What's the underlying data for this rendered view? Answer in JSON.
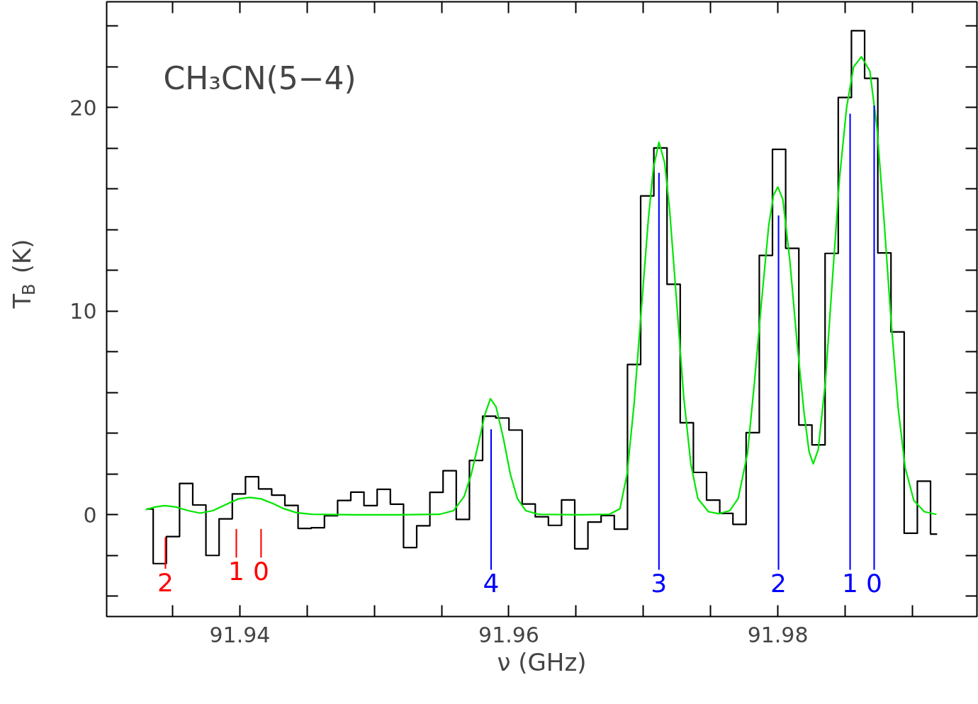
{
  "chart_data": {
    "type": "step",
    "title": "CH₃CN(5−4)",
    "xlabel": "ν (GHz)",
    "ylabel": "T$_{B}$ (K)",
    "xlim": [
      91.9301,
      91.9948
    ],
    "ylim": [
      -5,
      25.2
    ],
    "xticks": [
      {
        "value": 91.935,
        "label": null
      },
      91.94,
      {
        "value": 91.945,
        "label": null
      },
      {
        "value": 91.95,
        "label": null
      },
      {
        "value": 91.955,
        "label": null
      },
      91.96,
      {
        "value": 91.965,
        "label": null
      },
      {
        "value": 91.97,
        "label": null
      },
      {
        "value": 91.975,
        "label": null
      },
      91.98,
      {
        "value": 91.985,
        "label": null
      },
      {
        "value": 91.99,
        "label": null
      }
    ],
    "yticks": [
      {
        "value": -4,
        "label": null
      },
      {
        "value": -2,
        "label": null
      },
      0,
      {
        "value": 2,
        "label": null
      },
      {
        "value": 4,
        "label": null
      },
      {
        "value": 6,
        "label": null
      },
      {
        "value": 8,
        "label": null
      },
      10,
      {
        "value": 12,
        "label": null
      },
      {
        "value": 14,
        "label": null
      },
      {
        "value": 16,
        "label": null
      },
      {
        "value": 18,
        "label": null
      },
      20,
      {
        "value": 22,
        "label": null
      },
      {
        "value": 24,
        "label": null
      }
    ],
    "grid": false,
    "series": [
      {
        "color": "#000000",
        "x": [
          91.93307,
          91.93405,
          91.93503,
          91.93601,
          91.93699,
          91.93797,
          91.93895,
          91.93993,
          91.94091,
          91.94188,
          91.94286,
          91.94384,
          91.94482,
          91.9458,
          91.94678,
          91.94776,
          91.94874,
          91.94972,
          91.9507,
          91.95168,
          91.95266,
          91.95364,
          91.95462,
          91.9556,
          91.95658,
          91.95756,
          91.95854,
          91.95952,
          91.9605,
          91.96148,
          91.96245,
          91.96343,
          91.96441,
          91.96539,
          91.96637,
          91.96735,
          91.96833,
          91.96931,
          91.97029,
          91.97127,
          91.97225,
          91.97323,
          91.97421,
          91.97519,
          91.97617,
          91.97715,
          91.97813,
          91.97911,
          91.98009,
          91.98107,
          91.98205,
          91.98302,
          91.984,
          91.98498,
          91.98596,
          91.98694,
          91.98792,
          91.9889,
          91.98988,
          91.99086,
          91.99184
        ],
        "values": [
          0.28,
          -2.4,
          -1.07,
          1.54,
          0.48,
          -2.0,
          -0.2,
          1.02,
          1.87,
          1.27,
          0.96,
          0.46,
          -0.67,
          -0.64,
          -0.05,
          0.7,
          1.11,
          0.45,
          1.25,
          0.52,
          -1.61,
          -0.54,
          1.1,
          2.16,
          -0.23,
          2.67,
          4.84,
          4.75,
          4.16,
          0.53,
          -0.1,
          -0.52,
          0.73,
          -1.67,
          -0.36,
          -0.04,
          -0.71,
          7.38,
          15.66,
          18.02,
          11.32,
          4.52,
          2.08,
          0.72,
          0.07,
          -0.47,
          4.03,
          12.74,
          17.95,
          13.09,
          4.41,
          3.43,
          12.84,
          20.5,
          23.78,
          21.44,
          12.86,
          8.98,
          -0.91,
          1.65,
          -0.95
        ]
      },
      {
        "type": "line",
        "color": "#00e600",
        "x": [
          91.933,
          91.93368,
          91.93442,
          91.93526,
          91.93616,
          91.93705,
          91.938,
          91.93895,
          91.93989,
          91.94074,
          91.94158,
          91.94247,
          91.94326,
          91.94421,
          91.94537,
          91.94853,
          91.95168,
          91.95484,
          91.95589,
          91.95668,
          91.95721,
          91.95774,
          91.95821,
          91.95863,
          91.95905,
          91.95958,
          91.96011,
          91.96063,
          91.96126,
          91.96221,
          91.96537,
          91.96747,
          91.96826,
          91.96879,
          91.96932,
          91.96984,
          91.97037,
          91.97074,
          91.97116,
          91.97158,
          91.97195,
          91.97247,
          91.973,
          91.97353,
          91.97405,
          91.97484,
          91.97563,
          91.97642,
          91.97705,
          91.97774,
          91.97826,
          91.97879,
          91.97932,
          91.97968,
          91.98,
          91.98037,
          91.98089,
          91.98142,
          91.98195,
          91.98232,
          91.98263,
          91.983,
          91.98353,
          91.98405,
          91.98458,
          91.98511,
          91.98563,
          91.98621,
          91.98684,
          91.98737,
          91.98789,
          91.98842,
          91.98895,
          91.98947,
          91.99011,
          91.99089,
          91.99179
        ],
        "values": [
          0.25,
          0.38,
          0.45,
          0.38,
          0.2,
          0.08,
          0.2,
          0.5,
          0.78,
          0.85,
          0.78,
          0.55,
          0.3,
          0.1,
          0.02,
          0,
          0,
          0.02,
          0.2,
          0.9,
          2.0,
          3.5,
          4.9,
          5.7,
          5.3,
          3.8,
          2.0,
          0.8,
          0.2,
          0.02,
          0,
          0.02,
          0.3,
          2.0,
          5.5,
          10.0,
          14.5,
          17.0,
          18.3,
          17.3,
          15.0,
          10.5,
          5.8,
          2.5,
          0.8,
          0.15,
          0.05,
          0.2,
          0.8,
          3.0,
          6.5,
          10.5,
          14.2,
          15.7,
          16.1,
          15.5,
          12.5,
          8.5,
          5.0,
          3.1,
          2.5,
          3.2,
          6.5,
          11.5,
          16.5,
          20.0,
          22.0,
          22.5,
          21.8,
          19.0,
          14.5,
          9.5,
          5.2,
          2.3,
          0.7,
          0.15,
          0.02
        ]
      },
      {
        "type": "bar",
        "color": "#ff0000",
        "x": [
          91.93447,
          91.93974,
          91.94158
        ],
        "base": [
          -2.65,
          -2.1,
          -2.1
        ],
        "values": [
          1.55,
          1.4,
          1.4
        ]
      },
      {
        "type": "bar",
        "color": "#0000ff",
        "x": [
          91.95868,
          91.97116,
          91.98005,
          91.98537,
          91.98716
        ],
        "base": [
          -2.7,
          -2.7,
          -2.7,
          -2.7,
          -2.7
        ],
        "values": [
          6.9,
          19.5,
          17.4,
          22.4,
          22.8
        ]
      }
    ],
    "annotations": [
      "2",
      "1",
      "0",
      "4",
      "3",
      "2",
      "1",
      "0"
    ]
  }
}
